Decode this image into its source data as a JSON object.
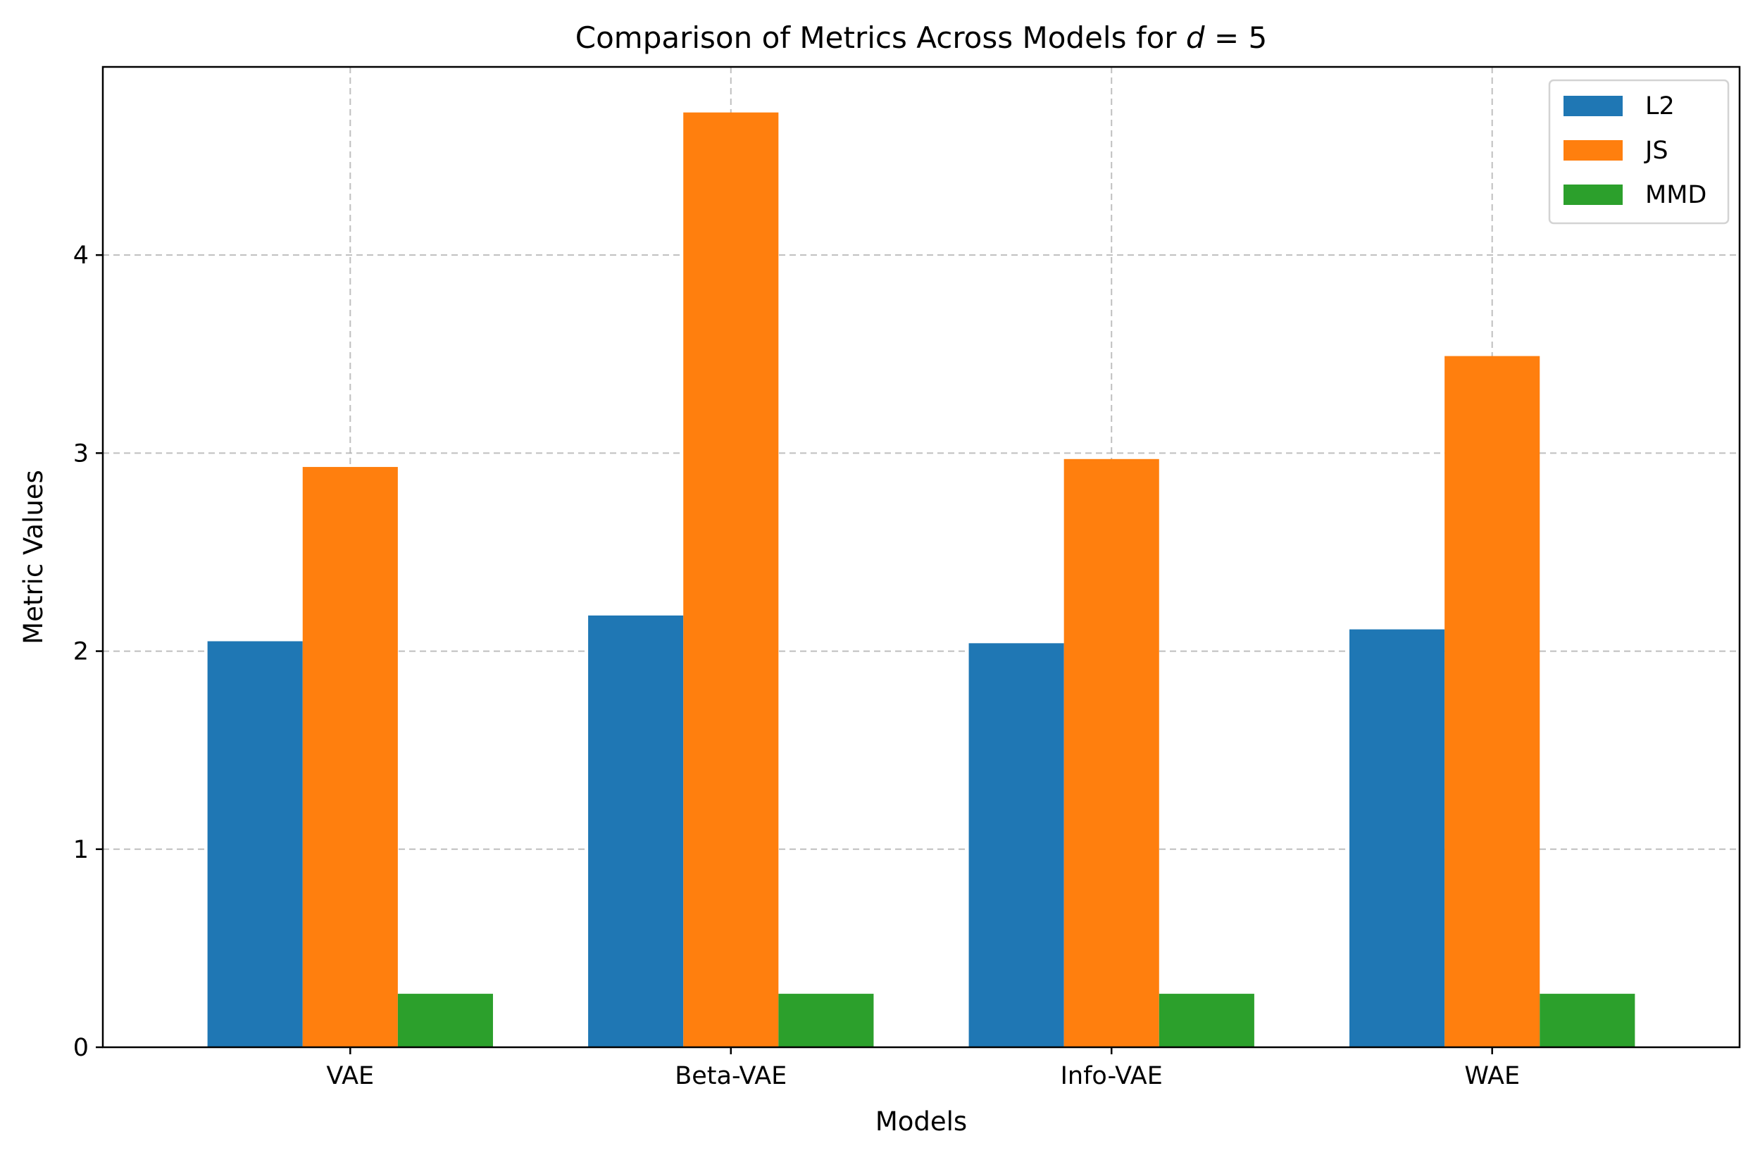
{
  "chart_data": {
    "type": "bar",
    "title": "Comparison of Metrics Across Models for d = 5",
    "title_parts": {
      "prefix": "Comparison of Metrics Across Models for ",
      "var": "d",
      "eq": " = 5"
    },
    "xlabel": "Models",
    "ylabel": "Metric Values",
    "categories": [
      "VAE",
      "Beta-VAE",
      "Info-VAE",
      "WAE"
    ],
    "series": [
      {
        "name": "L2",
        "color": "#1f77b4",
        "values": [
          2.05,
          2.18,
          2.04,
          2.11
        ]
      },
      {
        "name": "JS",
        "color": "#ff7f0e",
        "values": [
          2.93,
          4.72,
          2.97,
          3.49
        ]
      },
      {
        "name": "MMD",
        "color": "#2ca02c",
        "values": [
          0.27,
          0.27,
          0.27,
          0.27
        ]
      }
    ],
    "yticks": [
      0,
      1,
      2,
      3,
      4
    ],
    "ylim": [
      0,
      4.95
    ],
    "grid": true,
    "legend_position": "top-right"
  }
}
